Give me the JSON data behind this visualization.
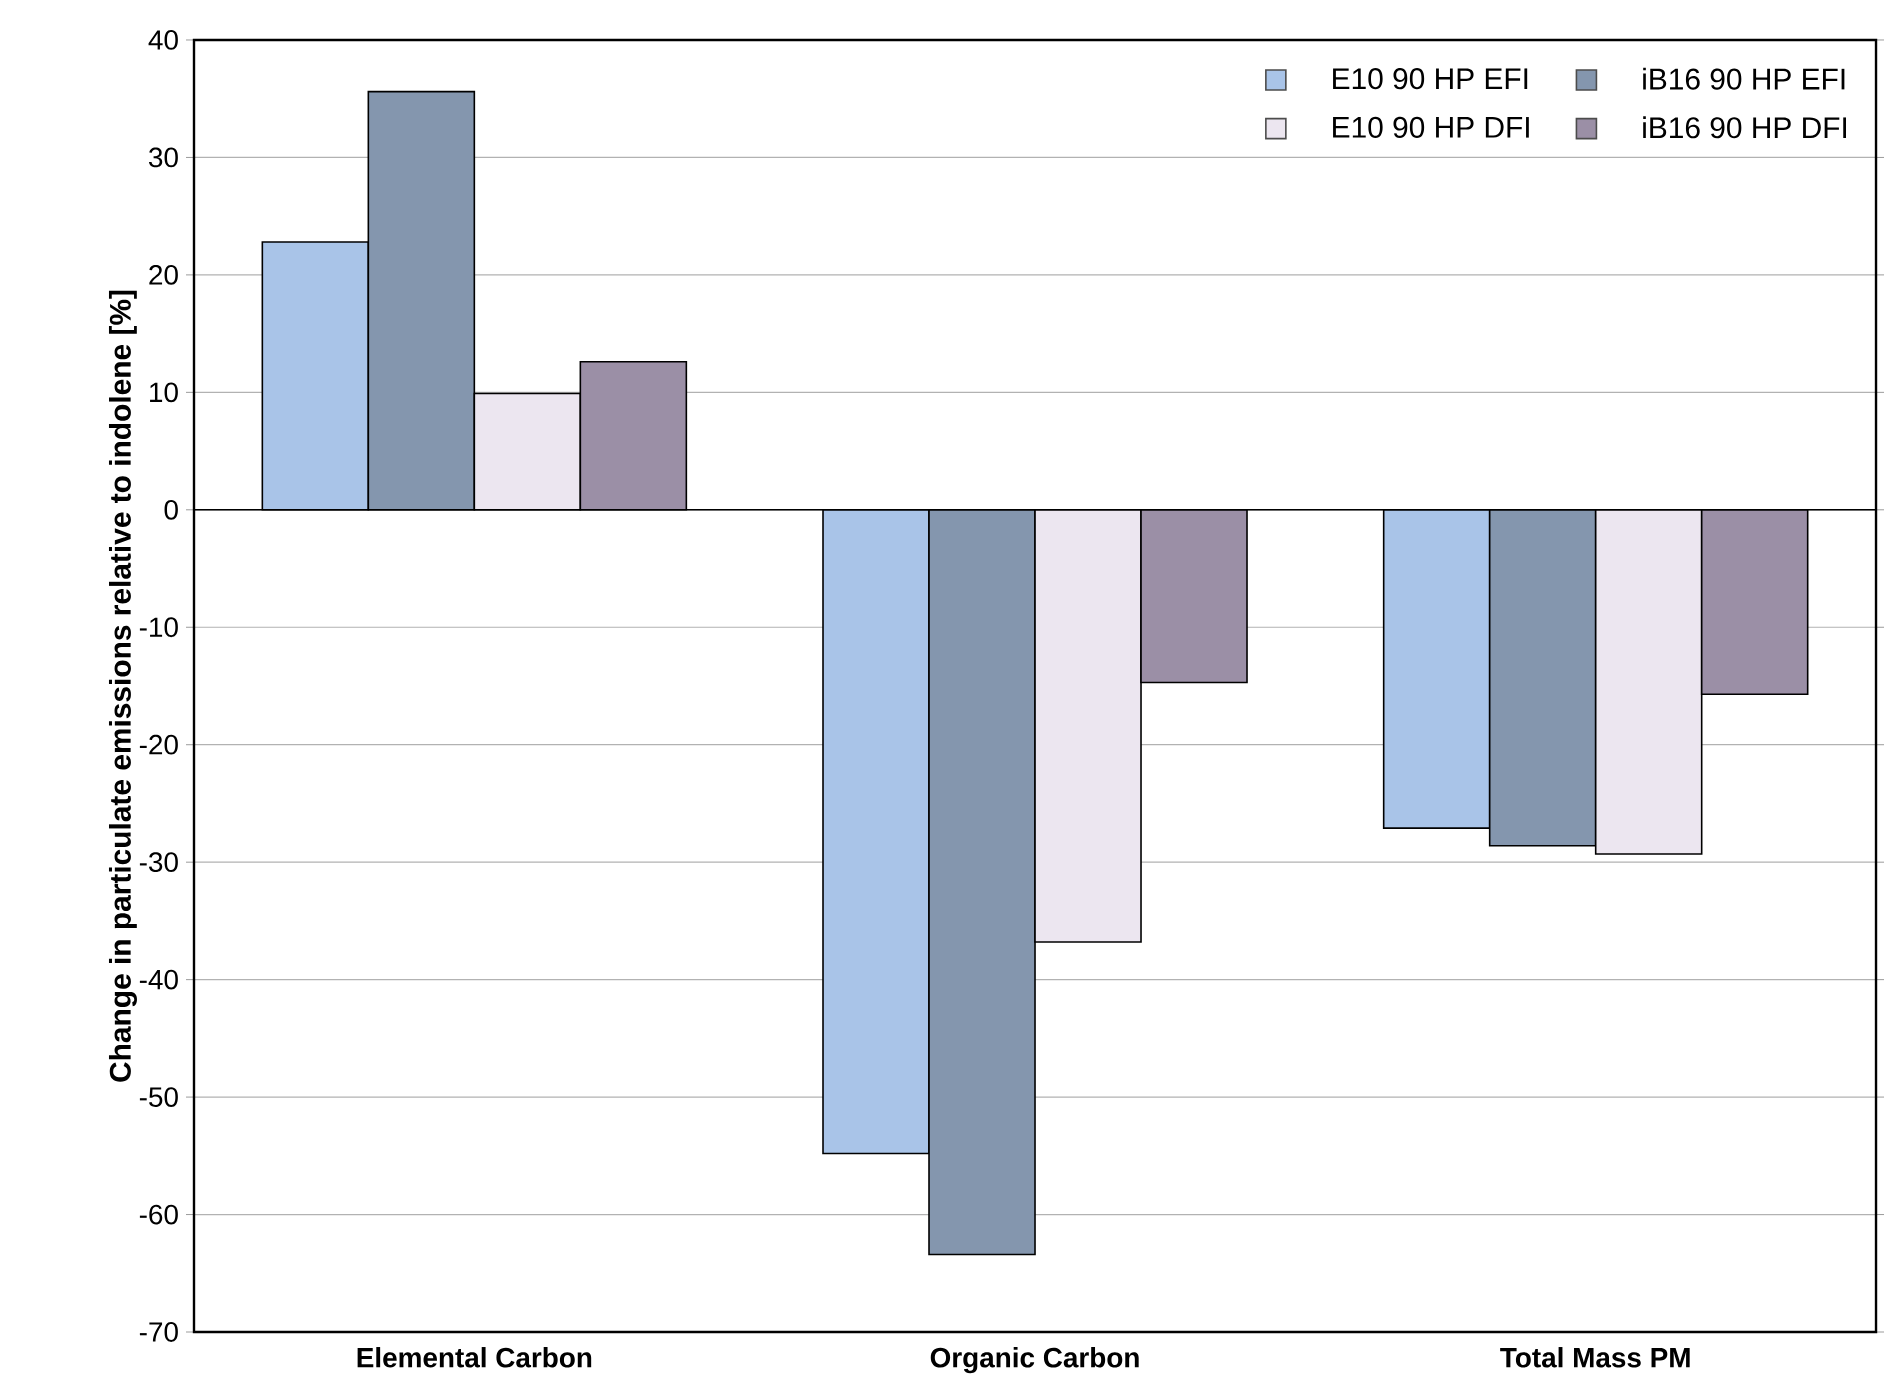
{
  "chart_data": {
    "type": "bar",
    "ylabel": "Change in particulate emissions relative to indolene [%]",
    "categories": [
      "Elemental Carbon",
      "Organic Carbon",
      "Total Mass PM"
    ],
    "series": [
      {
        "name": "E10 90 HP EFI",
        "color": "#a9c4e8",
        "values": [
          22.8,
          -54.8,
          -27.1
        ]
      },
      {
        "name": "iB16 90 HP EFI",
        "color": "#8496ae",
        "values": [
          35.6,
          -63.4,
          -28.6
        ]
      },
      {
        "name": "E10 90 HP DFI",
        "color": "#ece6f0",
        "values": [
          9.9,
          -36.8,
          -29.3
        ]
      },
      {
        "name": "iB16 90 HP DFI",
        "color": "#9b8fa6",
        "values": [
          12.6,
          -14.7,
          -15.7
        ]
      }
    ],
    "ylim": [
      -70,
      40
    ],
    "yticks": [
      -70,
      -60,
      -50,
      -40,
      -30,
      -20,
      -10,
      0,
      10,
      20,
      30,
      40
    ],
    "grid": "y",
    "legend": "top right"
  }
}
